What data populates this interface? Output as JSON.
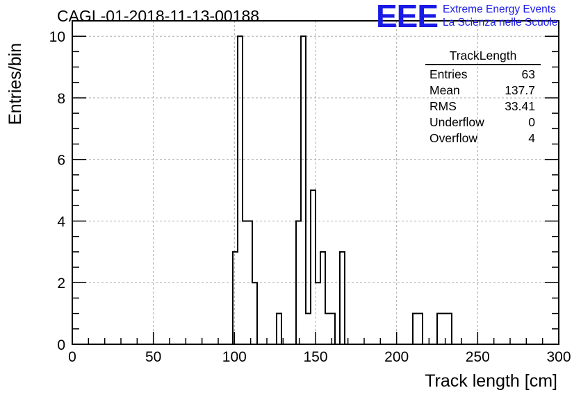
{
  "header": {
    "title": "CAGL-01-2018-11-13-00188",
    "logo": "EEE",
    "logo_line1": "Extreme Energy Events",
    "logo_line2": "La Scienza nelle Scuole",
    "logo_color": "#1a1ae6"
  },
  "stats": {
    "title": "TrackLength",
    "rows": [
      {
        "label": "Entries",
        "value": "63"
      },
      {
        "label": "Mean",
        "value": "137.7"
      },
      {
        "label": "RMS",
        "value": "33.41"
      },
      {
        "label": "Underflow",
        "value": "0"
      },
      {
        "label": "Overflow",
        "value": "4"
      }
    ]
  },
  "chart_data": {
    "type": "histogram",
    "title": "CAGL-01-2018-11-13-00188",
    "xlabel": "Track length [cm]",
    "ylabel": "Entries/bin",
    "xlim": [
      0,
      300
    ],
    "ylim": [
      0,
      10.5
    ],
    "bin_width": 3,
    "grid": true,
    "xticks": [
      0,
      50,
      100,
      150,
      200,
      250,
      300
    ],
    "yticks": [
      0,
      2,
      4,
      6,
      8,
      10
    ],
    "line_color": "#000000",
    "bins": [
      {
        "x": 99,
        "count": 3
      },
      {
        "x": 102,
        "count": 10
      },
      {
        "x": 105,
        "count": 4
      },
      {
        "x": 108,
        "count": 4
      },
      {
        "x": 111,
        "count": 2
      },
      {
        "x": 126,
        "count": 1
      },
      {
        "x": 138,
        "count": 4
      },
      {
        "x": 141,
        "count": 10
      },
      {
        "x": 144,
        "count": 1
      },
      {
        "x": 147,
        "count": 5
      },
      {
        "x": 150,
        "count": 2
      },
      {
        "x": 153,
        "count": 3
      },
      {
        "x": 156,
        "count": 1
      },
      {
        "x": 159,
        "count": 1
      },
      {
        "x": 165,
        "count": 3
      },
      {
        "x": 210,
        "count": 1
      },
      {
        "x": 213,
        "count": 1
      },
      {
        "x": 225,
        "count": 1
      },
      {
        "x": 228,
        "count": 1
      },
      {
        "x": 231,
        "count": 1
      }
    ]
  }
}
